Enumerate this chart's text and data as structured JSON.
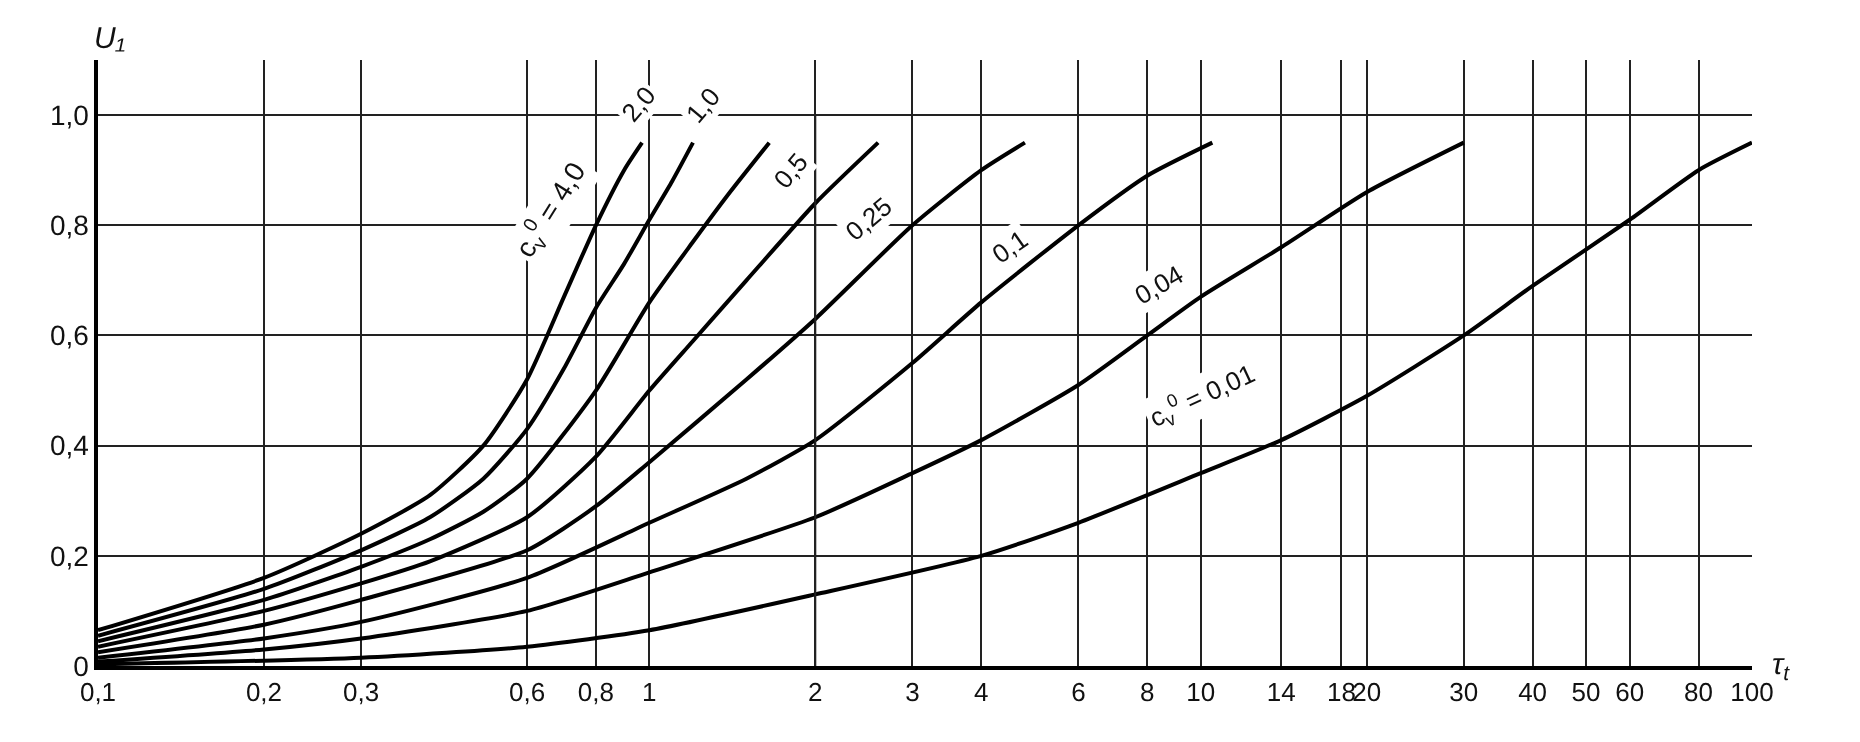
{
  "chart_data": {
    "type": "line",
    "xlabel": "τ$_{t}$",
    "ylabel": "U₁",
    "log": "x",
    "grid": true,
    "marker": "none",
    "line_style": "solid",
    "xlim": [
      0.1,
      100
    ],
    "ylim": [
      0,
      1.1
    ],
    "xticks": [
      {
        "value": 0.1,
        "label": "0,1"
      },
      {
        "value": 0.2,
        "label": "0,2"
      },
      {
        "value": 0.3,
        "label": "0,3"
      },
      {
        "value": 0.6,
        "label": "0,6"
      },
      {
        "value": 0.8,
        "label": "0,8"
      },
      1,
      2,
      3,
      4,
      6,
      8,
      10,
      14,
      18,
      20,
      30,
      40,
      50,
      60,
      80,
      100
    ],
    "yticks": [
      0,
      {
        "value": 0.2,
        "label": "0,2"
      },
      {
        "value": 0.4,
        "label": "0,4"
      },
      {
        "value": 0.6,
        "label": "0,6"
      },
      {
        "value": 0.8,
        "label": "0,8"
      },
      {
        "value": 1.0,
        "label": "1,0"
      }
    ],
    "series": [
      {
        "color": "#000000",
        "x": [
          0.1,
          0.2,
          0.3,
          0.4,
          0.5,
          0.6,
          0.7,
          0.8,
          0.9,
          0.97
        ],
        "values": [
          0.065,
          0.16,
          0.24,
          0.31,
          0.4,
          0.52,
          0.67,
          0.8,
          0.9,
          0.95
        ]
      },
      {
        "color": "#000000",
        "x": [
          0.1,
          0.2,
          0.3,
          0.4,
          0.5,
          0.6,
          0.7,
          0.8,
          0.9,
          1,
          1.1,
          1.2
        ],
        "values": [
          0.055,
          0.14,
          0.21,
          0.27,
          0.34,
          0.43,
          0.54,
          0.65,
          0.73,
          0.81,
          0.88,
          0.95
        ]
      },
      {
        "color": "#000000",
        "x": [
          0.1,
          0.2,
          0.3,
          0.4,
          0.5,
          0.6,
          0.8,
          1,
          1.2,
          1.4,
          1.65
        ],
        "values": [
          0.045,
          0.12,
          0.18,
          0.23,
          0.28,
          0.34,
          0.5,
          0.66,
          0.77,
          0.86,
          0.95
        ]
      },
      {
        "color": "#000000",
        "x": [
          0.1,
          0.2,
          0.3,
          0.4,
          0.6,
          0.8,
          1,
          1.2,
          1.5,
          2,
          2.6
        ],
        "values": [
          0.035,
          0.1,
          0.15,
          0.19,
          0.27,
          0.38,
          0.5,
          0.59,
          0.7,
          0.84,
          0.95
        ]
      },
      {
        "color": "#000000",
        "x": [
          0.1,
          0.2,
          0.3,
          0.6,
          0.8,
          1,
          1.5,
          2,
          3,
          4,
          4.8
        ],
        "values": [
          0.025,
          0.075,
          0.12,
          0.21,
          0.29,
          0.37,
          0.52,
          0.63,
          0.8,
          0.9,
          0.95
        ]
      },
      {
        "color": "#000000",
        "x": [
          0.1,
          0.2,
          0.3,
          0.6,
          1,
          1.5,
          2,
          3,
          4,
          6,
          8,
          10.5
        ],
        "values": [
          0.015,
          0.05,
          0.08,
          0.16,
          0.26,
          0.34,
          0.41,
          0.55,
          0.66,
          0.8,
          0.89,
          0.95
        ]
      },
      {
        "color": "#000000",
        "x": [
          0.1,
          0.2,
          0.3,
          0.6,
          1,
          2,
          3,
          4,
          6,
          8,
          10,
          14,
          20,
          30
        ],
        "values": [
          0.008,
          0.03,
          0.05,
          0.1,
          0.17,
          0.27,
          0.35,
          0.41,
          0.51,
          0.6,
          0.67,
          0.76,
          0.86,
          0.95
        ]
      },
      {
        "color": "#000000",
        "x": [
          0.1,
          0.3,
          0.6,
          1,
          2,
          4,
          6,
          10,
          14,
          20,
          30,
          40,
          60,
          80,
          100
        ],
        "values": [
          0.003,
          0.015,
          0.035,
          0.065,
          0.13,
          0.2,
          0.26,
          0.35,
          0.41,
          0.49,
          0.6,
          0.69,
          0.81,
          0.9,
          0.95
        ]
      }
    ],
    "annotations": [
      {
        "text": "c$_{v}$$^{0}$ = 4,0",
        "x": 0.8,
        "y": 0.8
      },
      {
        "text": "2,0",
        "x": 0.95,
        "y": 1.02
      },
      {
        "text": "1,0",
        "x": 1.25,
        "y": 1.02
      },
      {
        "text": "0,5",
        "x": 1.8,
        "y": 0.9
      },
      {
        "text": "0,25",
        "x": 2.5,
        "y": 0.81
      },
      {
        "text": "0,1",
        "x": 4.5,
        "y": 0.76
      },
      {
        "text": "0,04",
        "x": 8.4,
        "y": 0.69
      },
      {
        "text": "c$_{v}$$^{0}$ = 0,01",
        "x": 14,
        "y": 0.41
      }
    ]
  }
}
